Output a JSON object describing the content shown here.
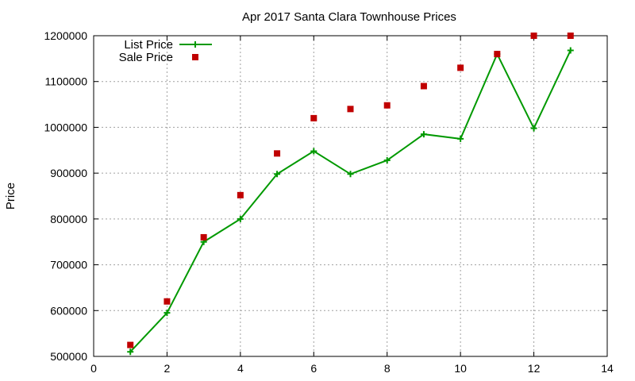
{
  "chart_data": {
    "type": "scatter",
    "title": "Apr 2017 Santa Clara Townhouse Prices",
    "xlabel": "",
    "ylabel": "Price",
    "xlim": [
      0,
      14
    ],
    "ylim": [
      500000,
      1200000
    ],
    "xticks": [
      "0",
      "2",
      "4",
      "6",
      "8",
      "10",
      "12",
      "14"
    ],
    "yticks": [
      "500000",
      "600000",
      "700000",
      "800000",
      "900000",
      "1000000",
      "1100000",
      "1200000"
    ],
    "grid": true,
    "legend_position": "top-left",
    "series": [
      {
        "name": "List Price",
        "style": "line-plus",
        "color": "#009900",
        "x": [
          1,
          2,
          3,
          4,
          5,
          6,
          7,
          8,
          9,
          10,
          11,
          12,
          13
        ],
        "y": [
          510000,
          595000,
          750000,
          800000,
          898000,
          948000,
          898000,
          928000,
          985000,
          975000,
          1160000,
          998000,
          1168000
        ]
      },
      {
        "name": "Sale Price",
        "style": "square",
        "color": "#c00000",
        "x": [
          1,
          2,
          3,
          4,
          5,
          6,
          7,
          8,
          9,
          10,
          11,
          12,
          13
        ],
        "y": [
          525000,
          620000,
          760000,
          852000,
          943000,
          1020000,
          1040000,
          1048000,
          1090000,
          1130000,
          1160000,
          1200000,
          1200000
        ]
      }
    ]
  }
}
